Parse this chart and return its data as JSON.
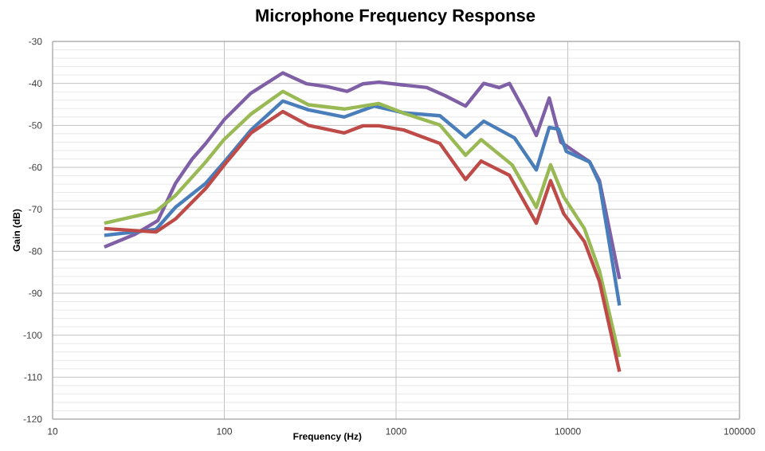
{
  "chart_data": {
    "type": "line",
    "title": "Microphone Frequency Response",
    "xlabel": "Frequency (Hz)",
    "ylabel": "Gain (dB)",
    "log": "x",
    "xlim": [
      10,
      100000
    ],
    "xticks": [
      10,
      100,
      1000,
      10000,
      100000
    ],
    "ylim": [
      -120,
      -30
    ],
    "yticks": [
      -120,
      -110,
      -100,
      -90,
      -80,
      -70,
      -60,
      -50,
      -40,
      -30
    ],
    "grid": true,
    "marker": "none",
    "line_style": "solid",
    "series": [
      {
        "color": "#7f5fa6",
        "x": [
          20,
          30,
          41,
          52,
          65,
          78,
          100,
          143,
          219,
          302,
          400,
          518,
          641,
          795,
          1110,
          1515,
          1930,
          2540,
          3240,
          3980,
          4570,
          5620,
          6560,
          7800,
          9120,
          10900,
          13400,
          15300,
          20000
        ],
        "values": [
          -79,
          -76,
          -72.7,
          -63.8,
          -58,
          -54.3,
          -48.6,
          -42.3,
          -37.5,
          -40.1,
          -40.8,
          -41.9,
          -40.1,
          -39.7,
          -40.4,
          -41,
          -42.9,
          -45.4,
          -40,
          -41,
          -40,
          -46.7,
          -52.4,
          -43.5,
          -54,
          -56.2,
          -58.7,
          -63.2,
          -86.6
        ]
      },
      {
        "color": "#4a7ebb",
        "x": [
          20,
          40,
          52,
          78,
          100,
          143,
          219,
          309,
          500,
          745,
          1110,
          1800,
          2540,
          3240,
          4900,
          6560,
          7800,
          8840,
          9800,
          13400,
          15300,
          20000
        ],
        "values": [
          -76.2,
          -74.8,
          -69.5,
          -63.8,
          -58.7,
          -51.1,
          -44.2,
          -46.3,
          -48,
          -45.4,
          -47,
          -47.7,
          -52.8,
          -49,
          -53,
          -60.6,
          -50.5,
          -50.9,
          -56.2,
          -58.7,
          -63.8,
          -92.9
        ]
      },
      {
        "color": "#98b954",
        "x": [
          20,
          40,
          52,
          78,
          100,
          143,
          219,
          309,
          500,
          795,
          1110,
          1800,
          2540,
          3130,
          4740,
          6560,
          7940,
          9460,
          12500,
          15300,
          20000
        ],
        "values": [
          -73.3,
          -70.5,
          -66.7,
          -58.7,
          -53.3,
          -47.3,
          -41.9,
          -45.1,
          -46.1,
          -44.8,
          -47.1,
          -49.9,
          -57.1,
          -53.4,
          -59.4,
          -69.5,
          -59.4,
          -67,
          -74.6,
          -84.7,
          -105.2
        ]
      },
      {
        "color": "#be4b48",
        "x": [
          20,
          40,
          52,
          78,
          100,
          143,
          219,
          309,
          500,
          641,
          795,
          1110,
          1800,
          2540,
          3130,
          4570,
          6560,
          7940,
          9460,
          12500,
          15300,
          20000
        ],
        "values": [
          -74.6,
          -75.4,
          -72.3,
          -65,
          -59.4,
          -51.8,
          -46.7,
          -50,
          -51.8,
          -50.1,
          -50.1,
          -51.1,
          -54.3,
          -62.9,
          -58.5,
          -61.9,
          -73.3,
          -63.2,
          -71,
          -77.7,
          -87.2,
          -108.7
        ]
      }
    ]
  }
}
